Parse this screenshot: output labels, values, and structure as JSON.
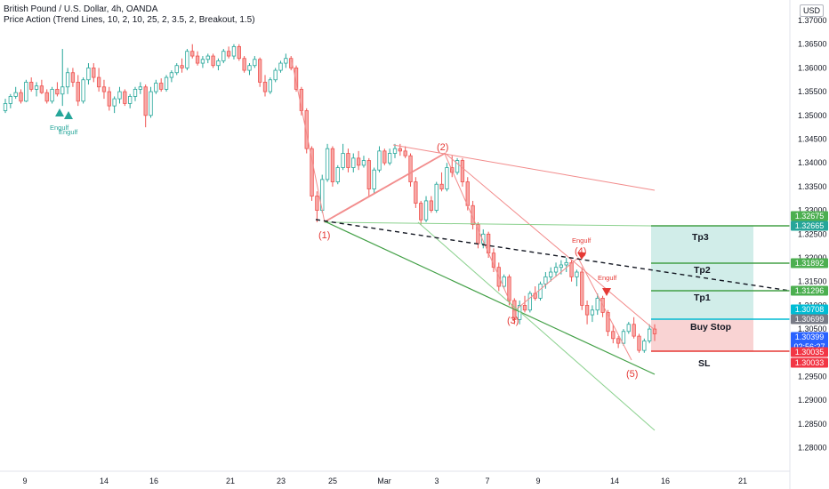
{
  "header": {
    "symbol_line": "British Pound / U.S. Dollar, 4h, OANDA",
    "indicator_line": "Price Action (Trend Lines, 10, 2, 10, 25, 2, 3.5, 2, Breakout, 1.5)",
    "currency": "USD"
  },
  "colors": {
    "bull": "#26a69a",
    "bear": "#ef5350",
    "bull_fill": "#ffffff",
    "bear_fill": "#f7a9a7",
    "tp_zone": "#d1ede9",
    "sl_zone": "#f9d3d3",
    "green_line": "#43a047",
    "light_green_line": "#8bd18e",
    "red_line": "#f28b8b",
    "cyan": "#00bcd4",
    "stop_red": "#e53935"
  },
  "chart_data": {
    "type": "candlestick",
    "symbol": "British Pound / U.S. Dollar",
    "timeframe": "4h",
    "broker": "OANDA",
    "currency": "USD",
    "ylim": [
      1.2765,
      1.3745
    ],
    "y_ticks": [
      "1.37000",
      "1.36500",
      "1.36000",
      "1.35500",
      "1.35000",
      "1.34500",
      "1.34000",
      "1.33500",
      "1.33000",
      "1.32500",
      "1.32000",
      "1.31500",
      "1.31000",
      "1.30500",
      "1.30000",
      "1.29500",
      "1.29000",
      "1.28500",
      "1.28000"
    ],
    "x_ticks": [
      "9",
      "14",
      "16",
      "21",
      "23",
      "25",
      "Mar",
      "3",
      "7",
      "9",
      "14",
      "16",
      "21"
    ],
    "candles": [
      [
        1.351,
        1.3535,
        1.3505,
        1.3525
      ],
      [
        1.3525,
        1.3545,
        1.3515,
        1.354
      ],
      [
        1.354,
        1.356,
        1.3535,
        1.3548
      ],
      [
        1.3548,
        1.3555,
        1.3525,
        1.353
      ],
      [
        1.353,
        1.3575,
        1.3528,
        1.357
      ],
      [
        1.357,
        1.358,
        1.355,
        1.3555
      ],
      [
        1.3555,
        1.357,
        1.354,
        1.3562
      ],
      [
        1.3562,
        1.3575,
        1.3545,
        1.3548
      ],
      [
        1.3548,
        1.3555,
        1.3525,
        1.353
      ],
      [
        1.353,
        1.356,
        1.3525,
        1.3555
      ],
      [
        1.3555,
        1.357,
        1.354,
        1.3545
      ],
      [
        1.3545,
        1.364,
        1.352,
        1.356
      ],
      [
        1.356,
        1.36,
        1.3545,
        1.359
      ],
      [
        1.359,
        1.36,
        1.356,
        1.357
      ],
      [
        1.357,
        1.3585,
        1.352,
        1.353
      ],
      [
        1.353,
        1.358,
        1.3525,
        1.3575
      ],
      [
        1.3575,
        1.361,
        1.3565,
        1.36
      ],
      [
        1.36,
        1.361,
        1.357,
        1.358
      ],
      [
        1.358,
        1.36,
        1.355,
        1.356
      ],
      [
        1.356,
        1.3575,
        1.3535,
        1.355
      ],
      [
        1.355,
        1.356,
        1.351,
        1.352
      ],
      [
        1.352,
        1.354,
        1.3505,
        1.3535
      ],
      [
        1.3535,
        1.356,
        1.3525,
        1.355
      ],
      [
        1.355,
        1.3555,
        1.352,
        1.3525
      ],
      [
        1.3525,
        1.3545,
        1.3515,
        1.354
      ],
      [
        1.354,
        1.356,
        1.353,
        1.3555
      ],
      [
        1.3555,
        1.357,
        1.3545,
        1.356
      ],
      [
        1.356,
        1.3565,
        1.3475,
        1.35
      ],
      [
        1.35,
        1.356,
        1.3495,
        1.355
      ],
      [
        1.355,
        1.3575,
        1.3545,
        1.3568
      ],
      [
        1.3568,
        1.3578,
        1.355,
        1.3555
      ],
      [
        1.3555,
        1.3585,
        1.355,
        1.358
      ],
      [
        1.358,
        1.3595,
        1.357,
        1.359
      ],
      [
        1.359,
        1.361,
        1.3585,
        1.3605
      ],
      [
        1.3605,
        1.362,
        1.359,
        1.36
      ],
      [
        1.36,
        1.364,
        1.3595,
        1.3635
      ],
      [
        1.3635,
        1.365,
        1.362,
        1.3625
      ],
      [
        1.3625,
        1.3635,
        1.3605,
        1.361
      ],
      [
        1.361,
        1.3625,
        1.36,
        1.3618
      ],
      [
        1.3618,
        1.363,
        1.361,
        1.3625
      ],
      [
        1.3625,
        1.363,
        1.36,
        1.3605
      ],
      [
        1.3605,
        1.362,
        1.3595,
        1.3615
      ],
      [
        1.3615,
        1.364,
        1.361,
        1.3635
      ],
      [
        1.3635,
        1.3645,
        1.362,
        1.3625
      ],
      [
        1.3625,
        1.365,
        1.3618,
        1.3645
      ],
      [
        1.3645,
        1.365,
        1.3615,
        1.362
      ],
      [
        1.362,
        1.3625,
        1.359,
        1.3595
      ],
      [
        1.3595,
        1.361,
        1.3585,
        1.3605
      ],
      [
        1.3605,
        1.3625,
        1.36,
        1.3618
      ],
      [
        1.3618,
        1.3622,
        1.356,
        1.357
      ],
      [
        1.357,
        1.3585,
        1.354,
        1.355
      ],
      [
        1.355,
        1.358,
        1.3545,
        1.3575
      ],
      [
        1.3575,
        1.36,
        1.357,
        1.3595
      ],
      [
        1.3595,
        1.3615,
        1.359,
        1.361
      ],
      [
        1.361,
        1.363,
        1.36,
        1.362
      ],
      [
        1.362,
        1.3625,
        1.3595,
        1.36
      ],
      [
        1.36,
        1.3605,
        1.355,
        1.3555
      ],
      [
        1.3555,
        1.356,
        1.35,
        1.351
      ],
      [
        1.351,
        1.3515,
        1.342,
        1.343
      ],
      [
        1.343,
        1.3435,
        1.332,
        1.333
      ],
      [
        1.333,
        1.334,
        1.3275,
        1.33
      ],
      [
        1.33,
        1.3375,
        1.3295,
        1.3365
      ],
      [
        1.3365,
        1.344,
        1.336,
        1.343
      ],
      [
        1.343,
        1.3435,
        1.335,
        1.336
      ],
      [
        1.336,
        1.3395,
        1.3355,
        1.339
      ],
      [
        1.339,
        1.344,
        1.3385,
        1.342
      ],
      [
        1.342,
        1.343,
        1.338,
        1.339
      ],
      [
        1.339,
        1.342,
        1.338,
        1.341
      ],
      [
        1.341,
        1.3425,
        1.3385,
        1.3395
      ],
      [
        1.3395,
        1.3415,
        1.339,
        1.3405
      ],
      [
        1.3405,
        1.341,
        1.333,
        1.3345
      ],
      [
        1.3345,
        1.339,
        1.3335,
        1.3385
      ],
      [
        1.3385,
        1.3435,
        1.338,
        1.3425
      ],
      [
        1.3425,
        1.343,
        1.3395,
        1.34
      ],
      [
        1.34,
        1.343,
        1.3395,
        1.342
      ],
      [
        1.342,
        1.344,
        1.341,
        1.343
      ],
      [
        1.343,
        1.344,
        1.3415,
        1.3425
      ],
      [
        1.3425,
        1.3435,
        1.341,
        1.3415
      ],
      [
        1.3415,
        1.342,
        1.335,
        1.336
      ],
      [
        1.336,
        1.337,
        1.3305,
        1.3315
      ],
      [
        1.3315,
        1.332,
        1.327,
        1.328
      ],
      [
        1.328,
        1.333,
        1.3275,
        1.332
      ],
      [
        1.332,
        1.333,
        1.3295,
        1.33
      ],
      [
        1.33,
        1.336,
        1.3295,
        1.3355
      ],
      [
        1.3355,
        1.338,
        1.334,
        1.3345
      ],
      [
        1.3345,
        1.34,
        1.334,
        1.339
      ],
      [
        1.339,
        1.3415,
        1.337,
        1.338
      ],
      [
        1.338,
        1.341,
        1.3375,
        1.3405
      ],
      [
        1.3405,
        1.341,
        1.335,
        1.336
      ],
      [
        1.336,
        1.337,
        1.33,
        1.331
      ],
      [
        1.331,
        1.332,
        1.326,
        1.327
      ],
      [
        1.327,
        1.3275,
        1.322,
        1.323
      ],
      [
        1.323,
        1.326,
        1.322,
        1.325
      ],
      [
        1.325,
        1.3255,
        1.32,
        1.321
      ],
      [
        1.321,
        1.322,
        1.317,
        1.318
      ],
      [
        1.318,
        1.319,
        1.313,
        1.314
      ],
      [
        1.314,
        1.3165,
        1.3135,
        1.316
      ],
      [
        1.316,
        1.3165,
        1.31,
        1.311
      ],
      [
        1.311,
        1.3115,
        1.306,
        1.307
      ],
      [
        1.307,
        1.311,
        1.306,
        1.31
      ],
      [
        1.31,
        1.312,
        1.3085,
        1.309
      ],
      [
        1.309,
        1.313,
        1.3085,
        1.3125
      ],
      [
        1.3125,
        1.314,
        1.311,
        1.3115
      ],
      [
        1.3115,
        1.315,
        1.311,
        1.3145
      ],
      [
        1.3145,
        1.317,
        1.3135,
        1.316
      ],
      [
        1.316,
        1.318,
        1.315,
        1.317
      ],
      [
        1.317,
        1.319,
        1.316,
        1.318
      ],
      [
        1.318,
        1.3195,
        1.3165,
        1.3185
      ],
      [
        1.3185,
        1.32,
        1.317,
        1.319
      ],
      [
        1.319,
        1.3195,
        1.315,
        1.316
      ],
      [
        1.316,
        1.3175,
        1.314,
        1.317
      ],
      [
        1.317,
        1.318,
        1.309,
        1.31
      ],
      [
        1.31,
        1.311,
        1.306,
        1.308
      ],
      [
        1.308,
        1.31,
        1.3065,
        1.309
      ],
      [
        1.309,
        1.3125,
        1.308,
        1.3115
      ],
      [
        1.3115,
        1.312,
        1.3075,
        1.3085
      ],
      [
        1.3085,
        1.309,
        1.3035,
        1.3045
      ],
      [
        1.3045,
        1.306,
        1.302,
        1.303
      ],
      [
        1.303,
        1.3035,
        1.301,
        1.302
      ],
      [
        1.302,
        1.305,
        1.3015,
        1.3045
      ],
      [
        1.3045,
        1.3065,
        1.304,
        1.306
      ],
      [
        1.306,
        1.3075,
        1.303,
        1.3035
      ],
      [
        1.3035,
        1.304,
        1.3,
        1.3005
      ],
      [
        1.3005,
        1.303,
        1.3,
        1.3025
      ],
      [
        1.3025,
        1.306,
        1.302,
        1.305
      ],
      [
        1.305,
        1.306,
        1.3025,
        1.304
      ]
    ],
    "price_levels": [
      {
        "label": "1.32675",
        "value": 1.32675,
        "color": "#4caf50"
      },
      {
        "label": "1.32665",
        "value": 1.32665,
        "color": "#26a69a"
      },
      {
        "label": "1.31892",
        "value": 1.31892,
        "color": "#4caf50"
      },
      {
        "label": "1.31296",
        "value": 1.31296,
        "color": "#4caf50"
      },
      {
        "label": "1.30708",
        "value": 1.30708,
        "color": "#00bcd4"
      },
      {
        "label": "1.30699",
        "value": 1.30699,
        "color": "#787b86"
      },
      {
        "label": "1.30399",
        "value": 1.30399,
        "color": "#2962ff",
        "sublabel": "02:56:27"
      },
      {
        "label": "1.30035",
        "value": 1.30035,
        "color": "#f23645"
      },
      {
        "label": "1.30033",
        "value": 1.30033,
        "color": "#f23645"
      }
    ],
    "zone_labels": {
      "tp3": "Tp3",
      "tp2": "Tp2",
      "tp1": "Tp1",
      "buy_stop": "Buy Stop",
      "sl": "SL"
    },
    "wave_labels": [
      "(1)",
      "(2)",
      "(3)",
      "(4)",
      "(5)"
    ],
    "signals": [
      {
        "text": "Engulf",
        "color": "#26a69a"
      },
      {
        "text": "Engulf",
        "color": "#26a69a"
      },
      {
        "text": "Engulf",
        "color": "#e53935"
      },
      {
        "text": "Engulf",
        "color": "#e53935"
      }
    ]
  }
}
